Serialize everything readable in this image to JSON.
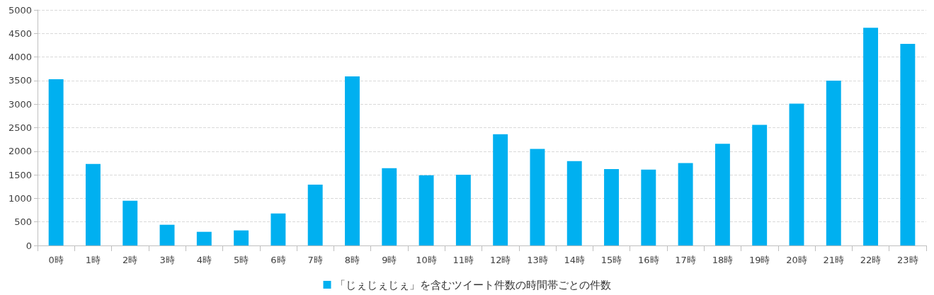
{
  "chart_data": {
    "type": "bar",
    "categories": [
      "0時",
      "1時",
      "2時",
      "3時",
      "4時",
      "5時",
      "6時",
      "7時",
      "8時",
      "9時",
      "10時",
      "11時",
      "12時",
      "13時",
      "14時",
      "15時",
      "16時",
      "17時",
      "18時",
      "19時",
      "20時",
      "21時",
      "22時",
      "23時"
    ],
    "series": [
      {
        "name": "「じぇじぇじぇ」を含むツイート件数の時間帯ごとの件数",
        "color": "#00b0f0",
        "values": [
          3530,
          1730,
          950,
          440,
          290,
          320,
          680,
          1290,
          3590,
          1640,
          1490,
          1500,
          2360,
          2050,
          1790,
          1620,
          1610,
          1750,
          2160,
          2560,
          3010,
          3500,
          4620,
          4280
        ]
      }
    ],
    "ylim": [
      0,
      5000
    ],
    "yticks": [
      0,
      500,
      1000,
      1500,
      2000,
      2500,
      3000,
      3500,
      4000,
      4500,
      5000
    ],
    "grid": "y",
    "legend": "bottom"
  }
}
